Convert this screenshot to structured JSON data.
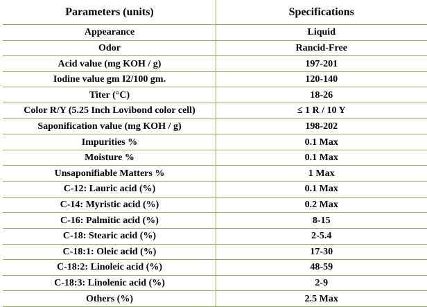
{
  "table": {
    "headers": [
      "Parameters (units)",
      "Specifications"
    ],
    "rows": [
      [
        "Appearance",
        "Liquid"
      ],
      [
        "Odor",
        "Rancid-Free"
      ],
      [
        "Acid value (mg KOH / g)",
        "197-201"
      ],
      [
        "Iodine value gm I2/100 gm.",
        "120-140"
      ],
      [
        "Titer (°C)",
        "18-26"
      ],
      [
        "Color R/Y (5.25 Inch Lovibond color cell)",
        "≤ 1 R / 10 Y"
      ],
      [
        "Saponification value (mg KOH / g)",
        "198-202"
      ],
      [
        "Impurities %",
        "0.1 Max"
      ],
      [
        "Moisture %",
        "0.1 Max"
      ],
      [
        "Unsaponifiable Matters %",
        "1 Max"
      ],
      [
        "C-12: Lauric acid (%)",
        "0.1 Max"
      ],
      [
        "C-14: Myristic acid (%)",
        "0.2 Max"
      ],
      [
        "C-16: Palmitic acid (%)",
        "8-15"
      ],
      [
        "C-18: Stearic acid (%)",
        "2-5.4"
      ],
      [
        "C-18:1: Oleic acid (%)",
        "17-30"
      ],
      [
        "C-18:2: Linoleic acid (%)",
        "48-59"
      ],
      [
        "C-18:3: Linolenic acid (%)",
        "2-9"
      ],
      [
        "Others (%)",
        "2.5 Max"
      ]
    ]
  },
  "colors": {
    "border": "#8fae52",
    "text": "#000000"
  }
}
